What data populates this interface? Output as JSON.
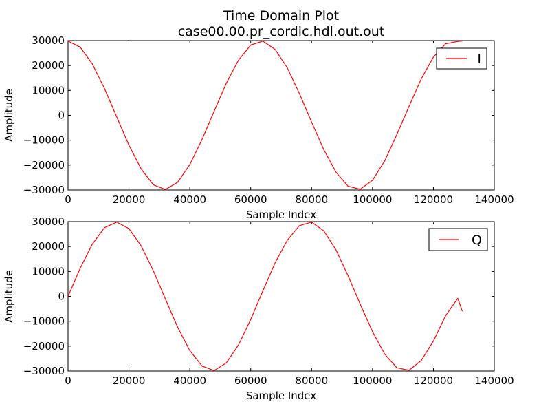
{
  "figure": {
    "title_line1": "Time Domain Plot",
    "title_line2": "case00.00.pr_cordic.hdl.out.out"
  },
  "chart_data": [
    {
      "type": "line",
      "xlabel": "Sample Index",
      "ylabel": "Amplitude",
      "xlim": [
        0,
        140000
      ],
      "ylim": [
        -30000,
        30000
      ],
      "xticks": [
        0,
        20000,
        40000,
        60000,
        80000,
        100000,
        120000,
        140000
      ],
      "yticks": [
        -30000,
        -20000,
        -10000,
        0,
        10000,
        20000,
        30000
      ],
      "grid": false,
      "legend_position": "top-right",
      "series": [
        {
          "name": "I",
          "color": "#ff0000",
          "x": [
            0,
            4000,
            8000,
            12000,
            16000,
            20000,
            24000,
            28000,
            32000,
            36000,
            40000,
            44000,
            48000,
            52000,
            56000,
            60000,
            64000,
            68000,
            72000,
            76000,
            80000,
            84000,
            88000,
            92000,
            96000,
            100000,
            104000,
            108000,
            112000,
            116000,
            120000,
            124000,
            128000,
            129500
          ],
          "values": [
            29800,
            27400,
            20600,
            10700,
            -700,
            -12000,
            -21500,
            -27900,
            -29800,
            -26900,
            -19800,
            -9700,
            1700,
            12900,
            22200,
            28200,
            29800,
            26500,
            19100,
            8700,
            -2700,
            -13800,
            -22800,
            -28500,
            -29700,
            -26100,
            -18300,
            -7700,
            3600,
            14600,
            23400,
            28700,
            29700,
            29800
          ]
        }
      ]
    },
    {
      "type": "line",
      "xlabel": "Sample Index",
      "ylabel": "Amplitude",
      "xlim": [
        0,
        140000
      ],
      "ylim": [
        -30000,
        30000
      ],
      "xticks": [
        0,
        20000,
        40000,
        60000,
        80000,
        100000,
        120000,
        140000
      ],
      "yticks": [
        -30000,
        -20000,
        -10000,
        0,
        10000,
        20000,
        30000
      ],
      "grid": false,
      "legend_position": "top-right",
      "series": [
        {
          "name": "Q",
          "color": "#ff0000",
          "x": [
            0,
            4000,
            8000,
            12000,
            16000,
            20000,
            24000,
            28000,
            32000,
            36000,
            40000,
            44000,
            48000,
            52000,
            56000,
            60000,
            64000,
            68000,
            72000,
            76000,
            80000,
            84000,
            88000,
            92000,
            96000,
            100000,
            104000,
            108000,
            112000,
            116000,
            120000,
            124000,
            128000,
            129500
          ],
          "values": [
            0,
            11300,
            21000,
            27600,
            29800,
            27200,
            20300,
            10300,
            -1100,
            -12400,
            -21800,
            -28000,
            -29800,
            -26700,
            -19500,
            -9300,
            2200,
            13400,
            22500,
            28400,
            29800,
            26300,
            18700,
            8200,
            -3200,
            -14200,
            -23200,
            -28700,
            -29700,
            -25800,
            -18000,
            -7800,
            -800,
            -6000
          ]
        }
      ]
    }
  ]
}
